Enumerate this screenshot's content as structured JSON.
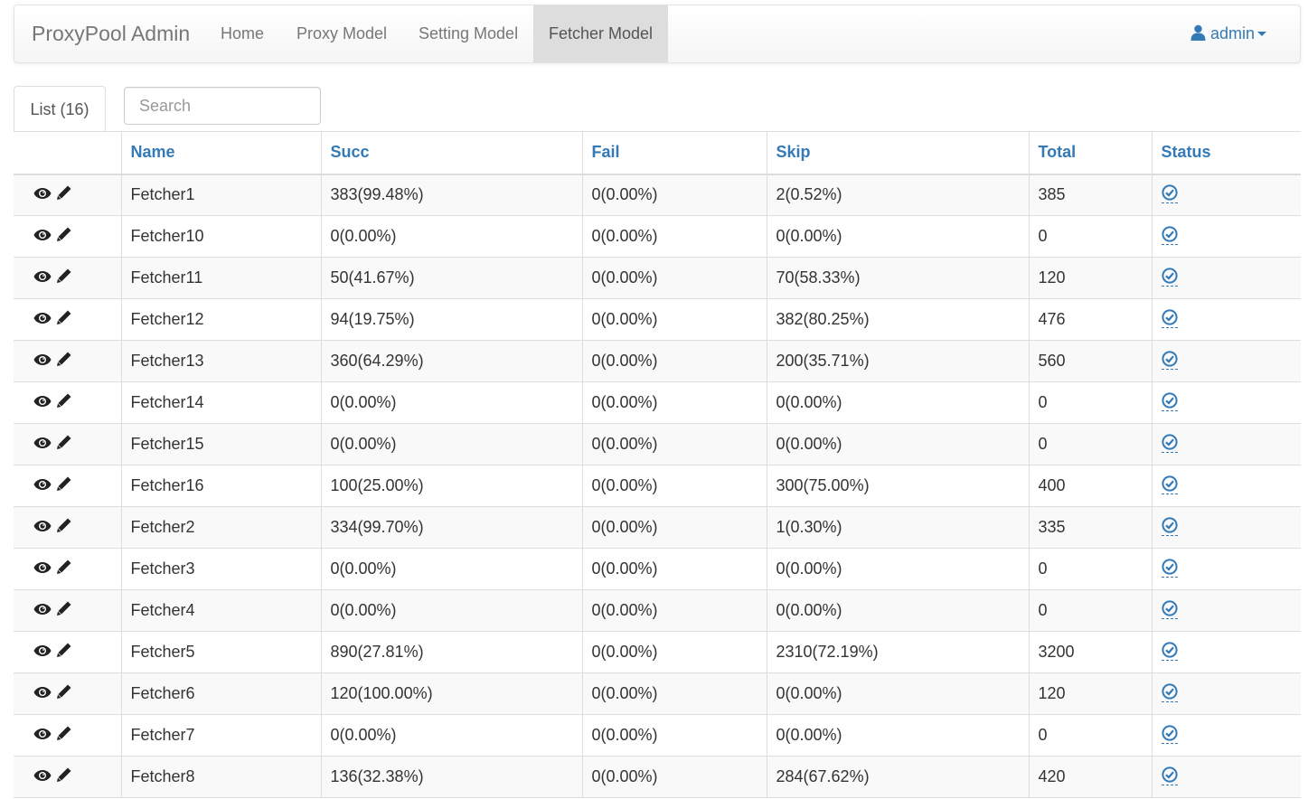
{
  "navbar": {
    "brand": "ProxyPool Admin",
    "items": [
      {
        "label": "Home"
      },
      {
        "label": "Proxy Model"
      },
      {
        "label": "Setting Model"
      },
      {
        "label": "Fetcher Model"
      }
    ],
    "user": "admin"
  },
  "list_tab": "List (16)",
  "search": {
    "placeholder": "Search",
    "value": ""
  },
  "columns": [
    "Name",
    "Succ",
    "Fail",
    "Skip",
    "Total",
    "Status"
  ],
  "rows": [
    {
      "name": "Fetcher1",
      "succ": "383(99.48%)",
      "fail": "0(0.00%)",
      "skip": "2(0.52%)",
      "total": "385"
    },
    {
      "name": "Fetcher10",
      "succ": "0(0.00%)",
      "fail": "0(0.00%)",
      "skip": "0(0.00%)",
      "total": "0"
    },
    {
      "name": "Fetcher11",
      "succ": "50(41.67%)",
      "fail": "0(0.00%)",
      "skip": "70(58.33%)",
      "total": "120"
    },
    {
      "name": "Fetcher12",
      "succ": "94(19.75%)",
      "fail": "0(0.00%)",
      "skip": "382(80.25%)",
      "total": "476"
    },
    {
      "name": "Fetcher13",
      "succ": "360(64.29%)",
      "fail": "0(0.00%)",
      "skip": "200(35.71%)",
      "total": "560"
    },
    {
      "name": "Fetcher14",
      "succ": "0(0.00%)",
      "fail": "0(0.00%)",
      "skip": "0(0.00%)",
      "total": "0"
    },
    {
      "name": "Fetcher15",
      "succ": "0(0.00%)",
      "fail": "0(0.00%)",
      "skip": "0(0.00%)",
      "total": "0"
    },
    {
      "name": "Fetcher16",
      "succ": "100(25.00%)",
      "fail": "0(0.00%)",
      "skip": "300(75.00%)",
      "total": "400"
    },
    {
      "name": "Fetcher2",
      "succ": "334(99.70%)",
      "fail": "0(0.00%)",
      "skip": "1(0.30%)",
      "total": "335"
    },
    {
      "name": "Fetcher3",
      "succ": "0(0.00%)",
      "fail": "0(0.00%)",
      "skip": "0(0.00%)",
      "total": "0"
    },
    {
      "name": "Fetcher4",
      "succ": "0(0.00%)",
      "fail": "0(0.00%)",
      "skip": "0(0.00%)",
      "total": "0"
    },
    {
      "name": "Fetcher5",
      "succ": "890(27.81%)",
      "fail": "0(0.00%)",
      "skip": "2310(72.19%)",
      "total": "3200"
    },
    {
      "name": "Fetcher6",
      "succ": "120(100.00%)",
      "fail": "0(0.00%)",
      "skip": "0(0.00%)",
      "total": "120"
    },
    {
      "name": "Fetcher7",
      "succ": "0(0.00%)",
      "fail": "0(0.00%)",
      "skip": "0(0.00%)",
      "total": "0"
    },
    {
      "name": "Fetcher8",
      "succ": "136(32.38%)",
      "fail": "0(0.00%)",
      "skip": "284(67.62%)",
      "total": "420"
    }
  ],
  "icons": {
    "view": "eye-icon",
    "edit": "pencil-icon",
    "status": "check-circle-icon",
    "user": "user-icon"
  },
  "colors": {
    "link": "#337ab7",
    "active_nav_bg": "#dddddd",
    "stripe": "#f9f9f9"
  }
}
